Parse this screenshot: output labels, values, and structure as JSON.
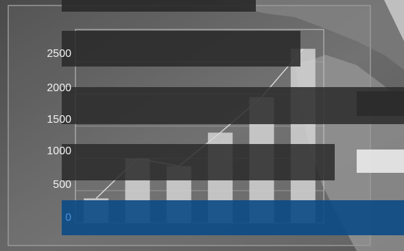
{
  "chart_data": {
    "type": "bar",
    "title": "",
    "xlabel": "",
    "ylabel": "",
    "categories": [
      "",
      "",
      "",
      "",
      "",
      ""
    ],
    "values": [
      380,
      1000,
      880,
      1400,
      1950,
      2700
    ],
    "yticks": [
      "2500",
      "2000",
      "1500",
      "1000",
      "500",
      "0"
    ],
    "ylim": [
      0,
      3000
    ],
    "grid": true,
    "bar_color": "#d2d2d2",
    "trend_line": true
  },
  "colors": {
    "background": "#5e5e5e",
    "overlay_dark": "#2a2a2a",
    "overlay_blue": "#0a4a85",
    "tick_text": "#f2f2f2"
  }
}
